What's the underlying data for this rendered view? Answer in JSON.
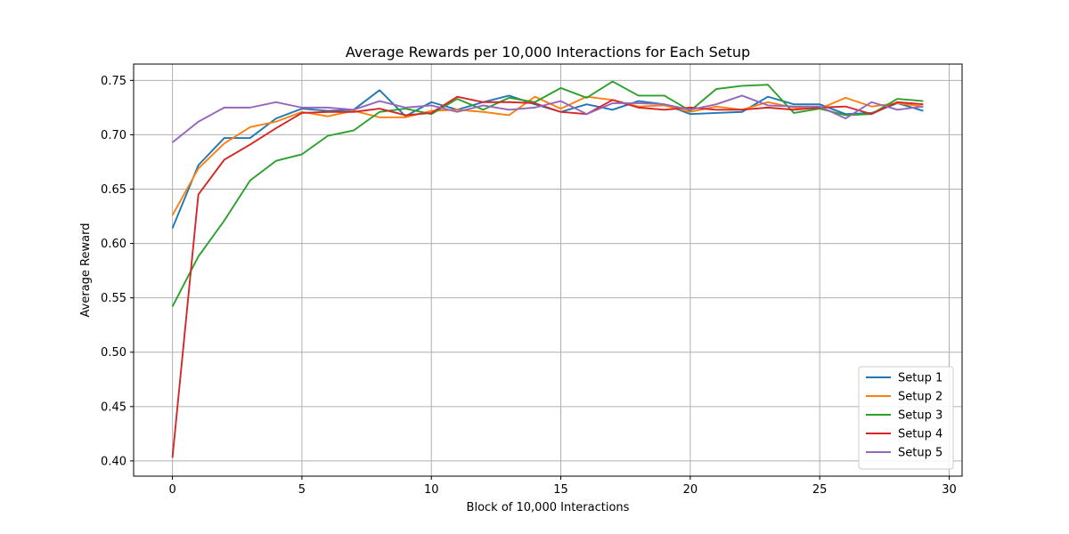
{
  "chart_data": {
    "type": "line",
    "title": "Average Rewards per 10,000 Interactions for Each Setup",
    "xlabel": "Block of 10,000 Interactions",
    "ylabel": "Average Reward",
    "xlim": [
      -1.5,
      30.5
    ],
    "ylim": [
      0.386,
      0.765
    ],
    "x_ticks": [
      0,
      5,
      10,
      15,
      20,
      25,
      30
    ],
    "y_ticks": [
      0.4,
      0.45,
      0.5,
      0.55,
      0.6,
      0.65,
      0.7,
      0.75
    ],
    "x_tick_labels": [
      "0",
      "5",
      "10",
      "15",
      "20",
      "25",
      "30"
    ],
    "y_tick_labels": [
      "0.40",
      "0.45",
      "0.50",
      "0.55",
      "0.60",
      "0.65",
      "0.70",
      "0.75"
    ],
    "grid": true,
    "legend_position": "lower-right",
    "x": [
      0,
      1,
      2,
      3,
      4,
      5,
      6,
      7,
      8,
      9,
      10,
      11,
      12,
      13,
      14,
      15,
      16,
      17,
      18,
      19,
      20,
      21,
      22,
      23,
      24,
      25,
      26,
      27,
      28,
      29
    ],
    "series": [
      {
        "name": "Setup 1",
        "color": "#1f77b4",
        "values": [
          0.614,
          0.672,
          0.697,
          0.697,
          0.715,
          0.724,
          0.722,
          0.723,
          0.741,
          0.717,
          0.73,
          0.723,
          0.73,
          0.736,
          0.728,
          0.721,
          0.728,
          0.723,
          0.731,
          0.728,
          0.719,
          0.72,
          0.721,
          0.735,
          0.728,
          0.728,
          0.719,
          0.72,
          0.729,
          0.722
        ]
      },
      {
        "name": "Setup 2",
        "color": "#ff7f0e",
        "values": [
          0.626,
          0.669,
          0.692,
          0.707,
          0.712,
          0.721,
          0.717,
          0.722,
          0.716,
          0.716,
          0.722,
          0.723,
          0.721,
          0.718,
          0.735,
          0.724,
          0.735,
          0.732,
          0.726,
          0.727,
          0.721,
          0.726,
          0.723,
          0.73,
          0.725,
          0.724,
          0.734,
          0.726,
          0.729,
          0.726
        ]
      },
      {
        "name": "Setup 3",
        "color": "#2ca02c",
        "values": [
          0.542,
          0.588,
          0.621,
          0.658,
          0.676,
          0.682,
          0.699,
          0.704,
          0.721,
          0.724,
          0.719,
          0.733,
          0.723,
          0.734,
          0.73,
          0.743,
          0.734,
          0.749,
          0.736,
          0.736,
          0.722,
          0.742,
          0.745,
          0.746,
          0.72,
          0.724,
          0.718,
          0.719,
          0.733,
          0.731
        ]
      },
      {
        "name": "Setup 4",
        "color": "#d62728",
        "values": [
          0.403,
          0.645,
          0.677,
          0.691,
          0.706,
          0.72,
          0.721,
          0.721,
          0.724,
          0.718,
          0.72,
          0.735,
          0.73,
          0.73,
          0.729,
          0.721,
          0.719,
          0.732,
          0.725,
          0.723,
          0.725,
          0.723,
          0.723,
          0.725,
          0.723,
          0.725,
          0.726,
          0.719,
          0.73,
          0.728
        ]
      },
      {
        "name": "Setup 5",
        "color": "#9467bd",
        "values": [
          0.693,
          0.712,
          0.725,
          0.725,
          0.73,
          0.725,
          0.725,
          0.723,
          0.731,
          0.725,
          0.727,
          0.721,
          0.727,
          0.723,
          0.725,
          0.731,
          0.719,
          0.729,
          0.729,
          0.728,
          0.723,
          0.728,
          0.736,
          0.727,
          0.726,
          0.726,
          0.715,
          0.73,
          0.723,
          0.726
        ]
      }
    ]
  }
}
